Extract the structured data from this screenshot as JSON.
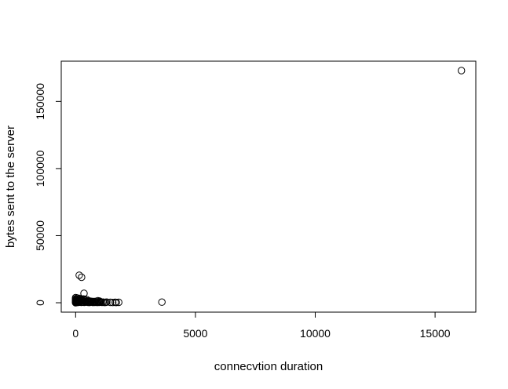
{
  "chart_data": {
    "type": "scatter",
    "title": "",
    "xlabel": "connecvtion duration",
    "ylabel": "bytes sent to the server",
    "xlim": [
      -600,
      16700
    ],
    "ylim": [
      -7000,
      180000
    ],
    "xticks": [
      0,
      5000,
      10000,
      15000
    ],
    "xtick_labels": [
      "0",
      "5000",
      "10000",
      "15000"
    ],
    "yticks": [
      0,
      50000,
      100000,
      150000
    ],
    "ytick_labels": [
      "0",
      "50000",
      "100000",
      "150000"
    ],
    "grid": false,
    "legend": "none",
    "marker": "open-circle",
    "colors": {
      "marker": "#000000",
      "axis": "#000000",
      "background": "#ffffff"
    },
    "points": [
      [
        16100,
        173000
      ],
      [
        3600,
        500
      ],
      [
        150,
        20500
      ],
      [
        250,
        19000
      ],
      [
        350,
        7000
      ],
      [
        0,
        0
      ],
      [
        0,
        300
      ],
      [
        0,
        800
      ],
      [
        0,
        1500
      ],
      [
        0,
        2200
      ],
      [
        0,
        3000
      ],
      [
        0,
        3800
      ],
      [
        20,
        500
      ],
      [
        40,
        1200
      ],
      [
        60,
        200
      ],
      [
        80,
        2500
      ],
      [
        100,
        900
      ],
      [
        120,
        1600
      ],
      [
        150,
        400
      ],
      [
        180,
        3200
      ],
      [
        200,
        1000
      ],
      [
        230,
        2000
      ],
      [
        260,
        600
      ],
      [
        300,
        1400
      ],
      [
        330,
        2800
      ],
      [
        360,
        300
      ],
      [
        400,
        1800
      ],
      [
        430,
        900
      ],
      [
        460,
        2400
      ],
      [
        500,
        600
      ],
      [
        540,
        1500
      ],
      [
        580,
        200
      ],
      [
        620,
        1100
      ],
      [
        650,
        700
      ],
      [
        700,
        400
      ],
      [
        750,
        900
      ],
      [
        800,
        300
      ],
      [
        850,
        500
      ],
      [
        900,
        200
      ],
      [
        950,
        700
      ],
      [
        1000,
        1200
      ],
      [
        1050,
        400
      ],
      [
        1100,
        300
      ],
      [
        1200,
        200
      ],
      [
        1300,
        500
      ],
      [
        1450,
        300
      ],
      [
        1550,
        200
      ],
      [
        1650,
        300
      ],
      [
        1700,
        200
      ],
      [
        1800,
        300
      ],
      [
        10,
        1600
      ],
      [
        30,
        2600
      ],
      [
        50,
        400
      ],
      [
        70,
        3500
      ],
      [
        90,
        1100
      ],
      [
        110,
        300
      ],
      [
        130,
        2100
      ],
      [
        160,
        700
      ],
      [
        190,
        1300
      ],
      [
        210,
        2600
      ],
      [
        240,
        300
      ],
      [
        270,
        1700
      ],
      [
        310,
        500
      ],
      [
        340,
        2200
      ],
      [
        380,
        1000
      ],
      [
        420,
        400
      ],
      [
        470,
        1200
      ],
      [
        520,
        300
      ],
      [
        560,
        900
      ],
      [
        600,
        500
      ],
      [
        680,
        1000
      ],
      [
        720,
        200
      ],
      [
        780,
        600
      ],
      [
        820,
        1000
      ],
      [
        880,
        400
      ],
      [
        930,
        1500
      ],
      [
        980,
        300
      ],
      [
        1020,
        700
      ],
      [
        1150,
        500
      ],
      [
        1250,
        300
      ]
    ]
  }
}
